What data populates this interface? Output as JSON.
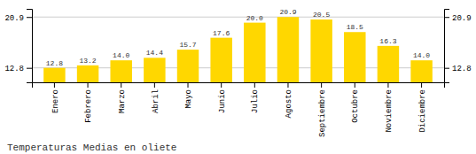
{
  "chart_data": {
    "type": "bar",
    "title": "Temperaturas Medias en oliete",
    "categories": [
      "Enero",
      "Febrero",
      "Marzo",
      "Abril",
      "Mayo",
      "Junio",
      "Julio",
      "Agosto",
      "Septiembre",
      "Octubre",
      "Noviembre",
      "Diciembre"
    ],
    "values": [
      12.8,
      13.2,
      14.0,
      14.4,
      15.7,
      17.6,
      20.0,
      20.9,
      20.5,
      18.5,
      16.3,
      14.0
    ],
    "value_labels": [
      "12.8",
      "13.2",
      "14.0",
      "14.4",
      "15.7",
      "17.6",
      "20.0",
      "20.9",
      "20.5",
      "18.5",
      "16.3",
      "14.0"
    ],
    "data_labels": true,
    "color": "#FFD700",
    "ylim": [
      10.5,
      22.2
    ],
    "yticks": [
      12.8,
      20.9
    ],
    "y2lim": [
      10.5,
      22.2
    ],
    "y2ticks": [
      12.8,
      20.9
    ],
    "grid": true
  }
}
